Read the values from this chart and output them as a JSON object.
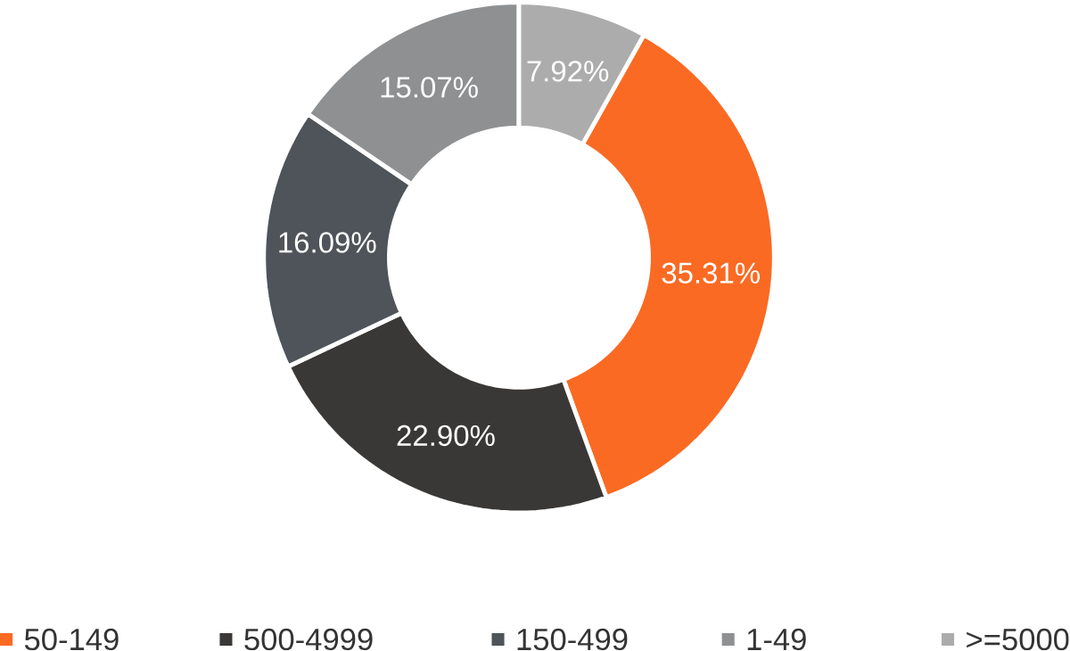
{
  "chart_data": {
    "type": "donut",
    "categories": [
      "50-149",
      "500-4999",
      "150-499",
      "1-49",
      ">=5000"
    ],
    "values": [
      35.31,
      22.9,
      16.09,
      15.07,
      7.92
    ],
    "value_labels": [
      "35.31%",
      "22.90%",
      "16.09%",
      "15.07%",
      "7.92%"
    ],
    "colors": [
      "#fa6a23",
      "#3a3836",
      "#4e5459",
      "#8e9092",
      "#acacac"
    ],
    "legend": "bottom"
  }
}
